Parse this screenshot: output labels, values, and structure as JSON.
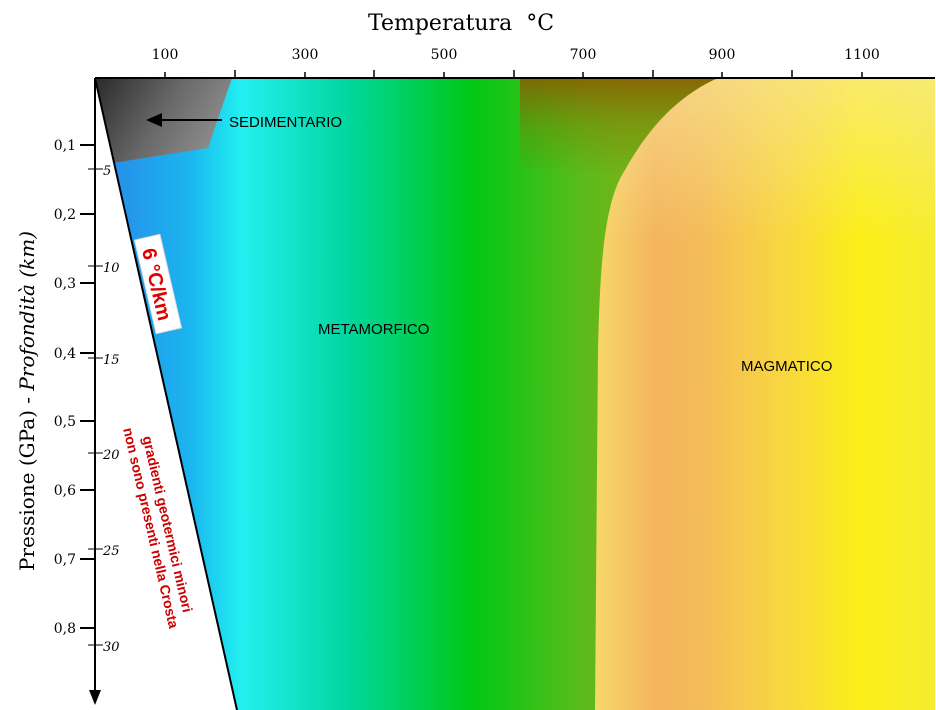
{
  "axes": {
    "top_title": "Temperatura",
    "top_unit": "°C",
    "top_ticks": [
      "100",
      "300",
      "500",
      "700",
      "900",
      "1100"
    ],
    "left_title_main": "Pressione (GPa) - ",
    "left_title_italic": "Profondità (km)",
    "pressure_ticks": [
      "0,1",
      "0,2",
      "0,3",
      "0,4",
      "0,5",
      "0,6",
      "0,7",
      "0,8"
    ],
    "depth_ticks": [
      "5",
      "10",
      "15",
      "20",
      "25",
      "30"
    ]
  },
  "regions": {
    "sedimentary": "SEDIMENTARIO",
    "metamorphic": "METAMORFICO",
    "magmatic": "MAGMATICO"
  },
  "annotations": {
    "gradient": "6 °C/km",
    "note_line1": "gradienti geotermici minori",
    "note_line2": "non sono presenti nella Crosta"
  },
  "colors": {
    "gradient_label": "#e00000",
    "note": "#cc0000"
  }
}
